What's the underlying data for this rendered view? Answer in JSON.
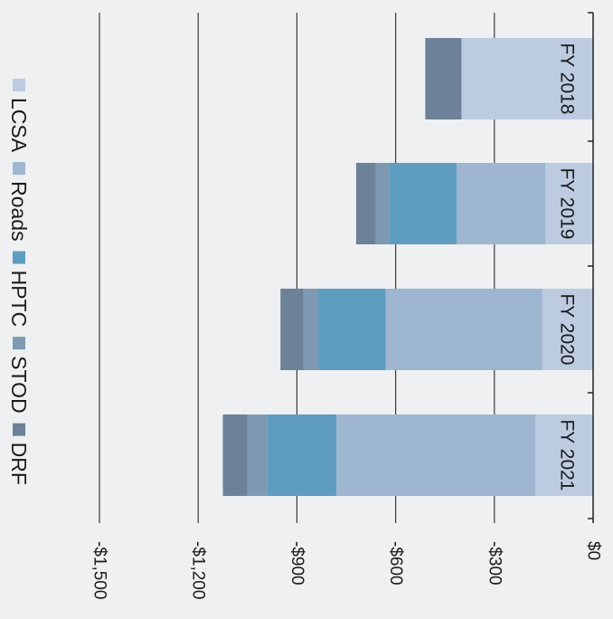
{
  "chart_data": {
    "type": "bar",
    "orientation": "horizontal-stacked",
    "categories": [
      "FY 2018",
      "FY 2019",
      "FY 2020",
      "FY 2021"
    ],
    "series": [
      {
        "name": "LCSA",
        "color": "#bccbe0",
        "values": [
          -400,
          -145,
          -155,
          -175
        ]
      },
      {
        "name": "Roads",
        "color": "#9fb6d1",
        "values": [
          0,
          -270,
          -475,
          -605
        ]
      },
      {
        "name": "HPTC",
        "color": "#5e9dc0",
        "values": [
          0,
          -205,
          -205,
          -210
        ]
      },
      {
        "name": "STOD",
        "color": "#7f99b3",
        "values": [
          0,
          -40,
          -45,
          -60
        ]
      },
      {
        "name": "DRF",
        "color": "#6d8199",
        "values": [
          -110,
          -60,
          -70,
          -75
        ]
      }
    ],
    "xlim": [
      -1500,
      0
    ],
    "x_ticks": [
      {
        "value": 0,
        "label": "$0"
      },
      {
        "value": -300,
        "label": "-$300"
      },
      {
        "value": -600,
        "label": "-$600"
      },
      {
        "value": -900,
        "label": "-$900"
      },
      {
        "value": -1200,
        "label": "-$1,200"
      },
      {
        "value": -1500,
        "label": "-$1,500"
      }
    ],
    "grid": true,
    "legend_position": "bottom",
    "rotation": "image rotated 90 degrees clockwise"
  }
}
